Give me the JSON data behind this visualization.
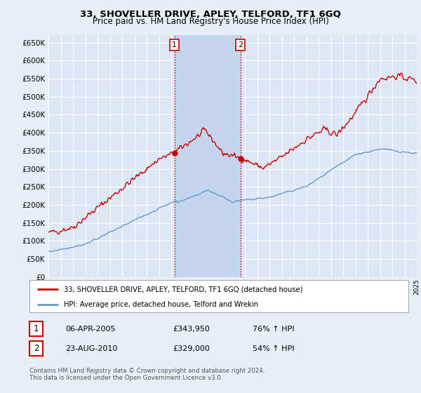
{
  "title": "33, SHOVELLER DRIVE, APLEY, TELFORD, TF1 6GQ",
  "subtitle": "Price paid vs. HM Land Registry's House Price Index (HPI)",
  "ylim": [
    0,
    670000
  ],
  "yticks": [
    0,
    50000,
    100000,
    150000,
    200000,
    250000,
    300000,
    350000,
    400000,
    450000,
    500000,
    550000,
    600000,
    650000
  ],
  "ytick_labels": [
    "£0",
    "£50K",
    "£100K",
    "£150K",
    "£200K",
    "£250K",
    "£300K",
    "£350K",
    "£400K",
    "£450K",
    "£500K",
    "£550K",
    "£600K",
    "£650K"
  ],
  "background_color": "#e8eef8",
  "plot_bg_color": "#dce6f5",
  "grid_color": "#ffffff",
  "red_line_color": "#cc0000",
  "blue_line_color": "#6699cc",
  "shade_color": "#c5d5ed",
  "sale1_x": 2005.27,
  "sale1_y": 343950,
  "sale1_label": "1",
  "sale2_x": 2010.64,
  "sale2_y": 329000,
  "sale2_label": "2",
  "vline_color": "#cc0000",
  "vline_style": ":",
  "legend_label_red": "33, SHOVELLER DRIVE, APLEY, TELFORD, TF1 6GQ (detached house)",
  "legend_label_blue": "HPI: Average price, detached house, Telford and Wrekin",
  "info1_num": "1",
  "info1_date": "06-APR-2005",
  "info1_price": "£343,950",
  "info1_hpi": "76% ↑ HPI",
  "info2_num": "2",
  "info2_date": "23-AUG-2010",
  "info2_price": "£329,000",
  "info2_hpi": "54% ↑ HPI",
  "footer": "Contains HM Land Registry data © Crown copyright and database right 2024.\nThis data is licensed under the Open Government Licence v3.0.",
  "xmin": 1995,
  "xmax": 2025
}
